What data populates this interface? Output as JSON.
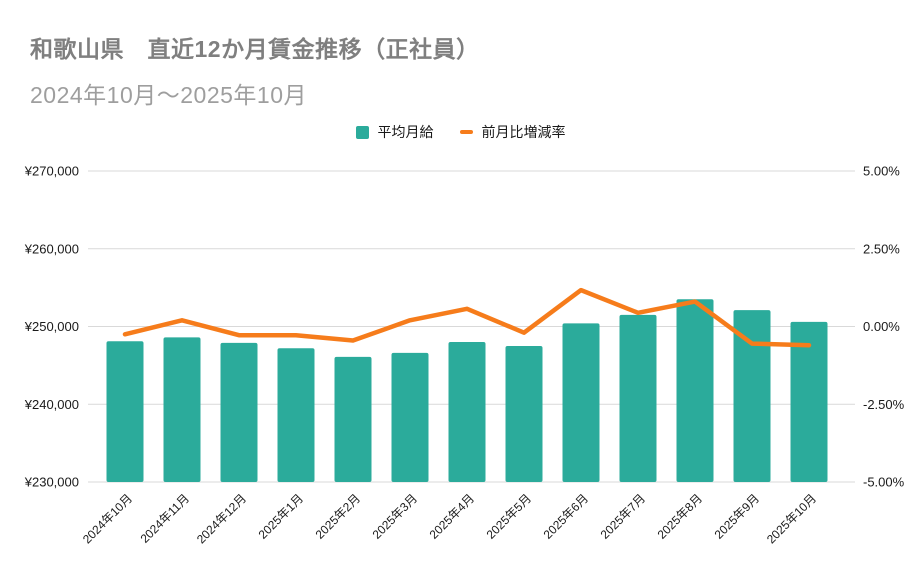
{
  "header": {
    "title": "和歌山県　直近12か月賃金推移（正社員）",
    "subtitle": "2024年10月～2025年10月"
  },
  "legend": [
    {
      "label": "平均月給",
      "shape": "square",
      "color": "#2BAB9B"
    },
    {
      "label": "前月比増減率",
      "shape": "dash",
      "color": "#F67C1B"
    }
  ],
  "colors": {
    "bar": "#2BAB9B",
    "line": "#F67C1B",
    "grid": "#D9D9D9",
    "axis_text": "#1A1A1A",
    "title_text": "#7F7F7F",
    "subtitle_text": "#9E9E9E",
    "background": "#FFFFFF"
  },
  "chart_data": {
    "type": "bar",
    "title": "和歌山県　直近12か月賃金推移（正社員）",
    "subtitle": "2024年10月～2025年10月",
    "grid": true,
    "legend_position": "top",
    "categories": [
      "2024年10月",
      "2024年11月",
      "2024年12月",
      "2025年1月",
      "2025年2月",
      "2025年3月",
      "2025年4月",
      "2025年5月",
      "2025年6月",
      "2025年7月",
      "2025年8月",
      "2025年9月",
      "2025年10月"
    ],
    "series": [
      {
        "name": "平均月給",
        "type": "bar",
        "axis": "left",
        "color": "#2BAB9B",
        "values": [
          248100,
          248600,
          247900,
          247200,
          246100,
          246600,
          248000,
          247500,
          250400,
          251500,
          253500,
          252100,
          250600
        ]
      },
      {
        "name": "前月比増減率",
        "type": "line",
        "axis": "right",
        "color": "#F67C1B",
        "values": [
          -0.25,
          0.2,
          -0.28,
          -0.28,
          -0.45,
          0.2,
          0.57,
          -0.2,
          1.17,
          0.44,
          0.8,
          -0.55,
          -0.6
        ]
      }
    ],
    "left_axis": {
      "unit": "yen",
      "min": 230000,
      "max": 270000,
      "tick_step": 10000,
      "tick_labels": [
        "¥230,000",
        "¥240,000",
        "¥250,000",
        "¥260,000",
        "¥270,000"
      ]
    },
    "right_axis": {
      "unit": "percent",
      "min": -5,
      "max": 5,
      "tick_step": 2.5,
      "tick_labels": [
        "-5.00%",
        "-2.50%",
        "0.00%",
        "2.50%",
        "5.00%"
      ]
    }
  }
}
